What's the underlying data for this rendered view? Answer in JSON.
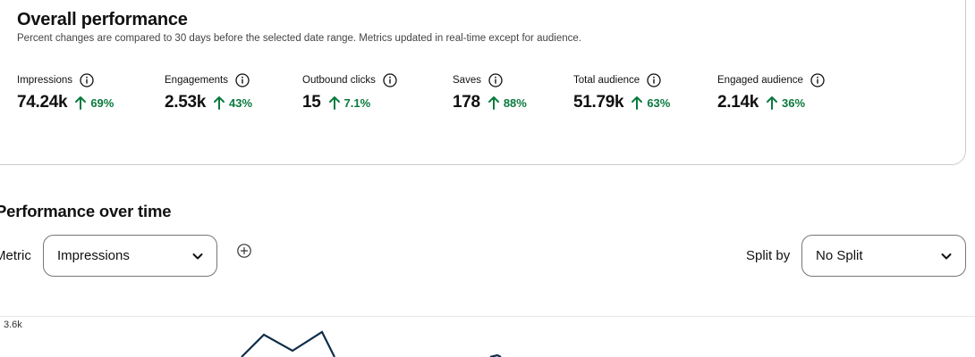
{
  "overview": {
    "title": "Overall performance",
    "subtitle": "Percent changes are compared to 30 days before the selected date range. Metrics updated in real-time except for audience.",
    "metrics": [
      {
        "label": "Impressions",
        "value": "74.24k",
        "change": "69%",
        "direction": "up"
      },
      {
        "label": "Engagements",
        "value": "2.53k",
        "change": "43%",
        "direction": "up"
      },
      {
        "label": "Outbound clicks",
        "value": "15",
        "change": "7.1%",
        "direction": "up"
      },
      {
        "label": "Saves",
        "value": "178",
        "change": "88%",
        "direction": "up"
      },
      {
        "label": "Total audience",
        "value": "51.79k",
        "change": "63%",
        "direction": "up"
      },
      {
        "label": "Engaged audience",
        "value": "2.14k",
        "change": "36%",
        "direction": "up"
      }
    ],
    "icons": {
      "info": "info-icon",
      "up": "up-arrow-icon"
    },
    "colors": {
      "positive": "#0a7a3e",
      "border": "#cdcdcd"
    }
  },
  "performance_over_time": {
    "title": "Performance over time",
    "metric_label": "Metric",
    "metric_selected": "Impressions",
    "split_label": "Split by",
    "split_selected": "No Split",
    "icons": {
      "add": "add-metric-icon",
      "dropdown": "chevron-down-icon"
    }
  },
  "chart": {
    "y_tick_label": "3.6k",
    "line_color": "#0f2d4a"
  }
}
